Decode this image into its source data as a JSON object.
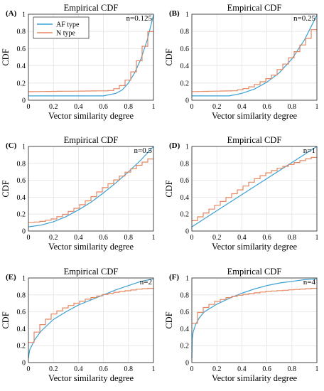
{
  "figure": {
    "panels": [
      {
        "label": "(A)",
        "title": "Empirical CDF",
        "annotation": "n=0.125",
        "xlabel": "Vector similarity degree",
        "ylabel": "CDF"
      },
      {
        "label": "(B)",
        "title": "Empirical CDF",
        "annotation": "n=0.25",
        "xlabel": "Vector similarity degree",
        "ylabel": "CDF"
      },
      {
        "label": "(C)",
        "title": "Empirical CDF",
        "annotation": "n=0.5",
        "xlabel": "Vector similarity degree",
        "ylabel": "CDF"
      },
      {
        "label": "(D)",
        "title": "Empirical CDF",
        "annotation": "n=1",
        "xlabel": "Vector similarity degree",
        "ylabel": "CDF"
      },
      {
        "label": "(E)",
        "title": "Empirical CDF",
        "annotation": "n=2",
        "xlabel": "Vector similarity degree",
        "ylabel": "CDF"
      },
      {
        "label": "(F)",
        "title": "Empirical CDF",
        "annotation": "n=4",
        "xlabel": "Vector similarity degree",
        "ylabel": "CDF"
      }
    ],
    "legend": {
      "placement": "top-left of panel (A)",
      "items": [
        "AF type",
        "N type"
      ]
    },
    "colors": {
      "af": "#3aa0d3",
      "n": "#e58760"
    }
  },
  "chart_data": [
    {
      "type": "line",
      "panel": "(A)",
      "title": "Empirical CDF",
      "annotation": "n=0.125",
      "xlabel": "Vector similarity degree",
      "ylabel": "CDF",
      "xlim": [
        0,
        1
      ],
      "ylim": [
        0,
        1
      ],
      "xticks": [
        "0",
        "0.2",
        "0.4",
        "0.6",
        "0.8",
        "1"
      ],
      "yticks": [
        "0",
        "0.2",
        "0.4",
        "0.6",
        "0.8",
        "1"
      ],
      "grid": true,
      "legend": "top-left",
      "series": [
        {
          "name": "AF type",
          "color": "#3aa0d3",
          "x": [
            0,
            0.6,
            0.7,
            0.75,
            0.8,
            0.85,
            0.9,
            0.95,
            1.0
          ],
          "y": [
            0.05,
            0.05,
            0.08,
            0.12,
            0.2,
            0.32,
            0.48,
            0.7,
            0.99
          ]
        },
        {
          "name": "N type",
          "color": "#e58760",
          "x": [
            0,
            0.65,
            0.7,
            0.75,
            0.8,
            0.85,
            0.9,
            0.95,
            1.0
          ],
          "y": [
            0.1,
            0.11,
            0.13,
            0.17,
            0.24,
            0.35,
            0.5,
            0.7,
            0.88
          ]
        }
      ]
    },
    {
      "type": "line",
      "panel": "(B)",
      "title": "Empirical CDF",
      "annotation": "n=0.25",
      "xlabel": "Vector similarity degree",
      "ylabel": "CDF",
      "xlim": [
        0,
        1
      ],
      "ylim": [
        0,
        1
      ],
      "xticks": [
        "0",
        "0.2",
        "0.4",
        "0.6",
        "0.8",
        "1"
      ],
      "yticks": [
        "0",
        "0.2",
        "0.4",
        "0.6",
        "0.8",
        "1"
      ],
      "grid": true,
      "series": [
        {
          "name": "AF type",
          "color": "#3aa0d3",
          "x": [
            0,
            0.3,
            0.4,
            0.5,
            0.6,
            0.7,
            0.8,
            0.9,
            1.0
          ],
          "y": [
            0.05,
            0.05,
            0.08,
            0.13,
            0.21,
            0.32,
            0.48,
            0.7,
            0.99
          ]
        },
        {
          "name": "N type",
          "color": "#e58760",
          "x": [
            0,
            0.35,
            0.45,
            0.55,
            0.65,
            0.75,
            0.85,
            0.95,
            1.0
          ],
          "y": [
            0.1,
            0.11,
            0.14,
            0.2,
            0.28,
            0.42,
            0.58,
            0.75,
            0.88
          ]
        }
      ]
    },
    {
      "type": "line",
      "panel": "(C)",
      "title": "Empirical CDF",
      "annotation": "n=0.5",
      "xlabel": "Vector similarity degree",
      "ylabel": "CDF",
      "xlim": [
        0,
        1
      ],
      "ylim": [
        0,
        1
      ],
      "xticks": [
        "0",
        "0.2",
        "0.4",
        "0.6",
        "0.8",
        "1"
      ],
      "yticks": [
        "0",
        "0.2",
        "0.4",
        "0.6",
        "0.8",
        "1"
      ],
      "grid": true,
      "series": [
        {
          "name": "AF type",
          "color": "#3aa0d3",
          "x": [
            0,
            0.1,
            0.2,
            0.3,
            0.4,
            0.5,
            0.6,
            0.7,
            0.8,
            0.9,
            1.0
          ],
          "y": [
            0.05,
            0.07,
            0.11,
            0.17,
            0.25,
            0.34,
            0.45,
            0.57,
            0.7,
            0.84,
            1.0
          ]
        },
        {
          "name": "N type",
          "color": "#e58760",
          "x": [
            0,
            0.1,
            0.2,
            0.3,
            0.4,
            0.5,
            0.6,
            0.7,
            0.8,
            0.9,
            1.0
          ],
          "y": [
            0.1,
            0.11,
            0.14,
            0.2,
            0.28,
            0.38,
            0.5,
            0.6,
            0.7,
            0.79,
            0.87
          ]
        }
      ]
    },
    {
      "type": "line",
      "panel": "(D)",
      "title": "Empirical CDF",
      "annotation": "n=1",
      "xlabel": "Vector similarity degree",
      "ylabel": "CDF",
      "xlim": [
        0,
        1
      ],
      "ylim": [
        0,
        1
      ],
      "xticks": [
        "0",
        "0.2",
        "0.4",
        "0.6",
        "0.8",
        "1"
      ],
      "yticks": [
        "0",
        "0.2",
        "0.4",
        "0.6",
        "0.8",
        "1"
      ],
      "grid": true,
      "series": [
        {
          "name": "AF type",
          "color": "#3aa0d3",
          "x": [
            0,
            0.2,
            0.4,
            0.6,
            0.8,
            1.0
          ],
          "y": [
            0.05,
            0.24,
            0.43,
            0.62,
            0.81,
            1.0
          ]
        },
        {
          "name": "N type",
          "color": "#e58760",
          "x": [
            0,
            0.1,
            0.2,
            0.3,
            0.4,
            0.5,
            0.6,
            0.7,
            0.8,
            0.9,
            1.0
          ],
          "y": [
            0.1,
            0.2,
            0.3,
            0.4,
            0.5,
            0.6,
            0.68,
            0.74,
            0.79,
            0.84,
            0.88
          ]
        }
      ]
    },
    {
      "type": "line",
      "panel": "(E)",
      "title": "Empirical CDF",
      "annotation": "n=2",
      "xlabel": "Vector similarity degree",
      "ylabel": "CDF",
      "xlim": [
        0,
        1
      ],
      "ylim": [
        0,
        1
      ],
      "xticks": [
        "0",
        "0.2",
        "0.4",
        "0.6",
        "0.8",
        "1"
      ],
      "yticks": [
        "0",
        "0.2",
        "0.4",
        "0.6",
        "0.8",
        "1"
      ],
      "grid": true,
      "series": [
        {
          "name": "AF type",
          "color": "#3aa0d3",
          "x": [
            0,
            0.01,
            0.05,
            0.1,
            0.2,
            0.3,
            0.4,
            0.5,
            0.6,
            0.7,
            0.8,
            0.9,
            1.0
          ],
          "y": [
            0.05,
            0.15,
            0.27,
            0.37,
            0.51,
            0.6,
            0.68,
            0.74,
            0.8,
            0.86,
            0.91,
            0.96,
            0.99
          ]
        },
        {
          "name": "N type",
          "color": "#e58760",
          "x": [
            0,
            0.01,
            0.05,
            0.1,
            0.2,
            0.3,
            0.4,
            0.5,
            0.6,
            0.7,
            0.8,
            0.9,
            1.0
          ],
          "y": [
            0.1,
            0.2,
            0.32,
            0.43,
            0.57,
            0.65,
            0.71,
            0.76,
            0.8,
            0.83,
            0.85,
            0.87,
            0.88
          ]
        }
      ]
    },
    {
      "type": "line",
      "panel": "(F)",
      "title": "Empirical CDF",
      "annotation": "n=4",
      "xlabel": "Vector similarity degree",
      "ylabel": "CDF",
      "xlim": [
        0,
        1
      ],
      "ylim": [
        0,
        1
      ],
      "xticks": [
        "0",
        "0.2",
        "0.4",
        "0.6",
        "0.8",
        "1"
      ],
      "yticks": [
        "0",
        "0.2",
        "0.4",
        "0.6",
        "0.8",
        "1"
      ],
      "grid": true,
      "series": [
        {
          "name": "AF type",
          "color": "#3aa0d3",
          "x": [
            0,
            0.003,
            0.01,
            0.03,
            0.06,
            0.1,
            0.2,
            0.3,
            0.4,
            0.5,
            0.6,
            0.7,
            0.8,
            0.9,
            1.0
          ],
          "y": [
            0.05,
            0.28,
            0.36,
            0.45,
            0.53,
            0.6,
            0.69,
            0.76,
            0.82,
            0.87,
            0.91,
            0.94,
            0.96,
            0.98,
            0.99
          ]
        },
        {
          "name": "N type",
          "color": "#e58760",
          "x": [
            0,
            0.003,
            0.01,
            0.03,
            0.06,
            0.1,
            0.2,
            0.3,
            0.4,
            0.5,
            0.6,
            0.7,
            0.8,
            0.9,
            1.0
          ],
          "y": [
            0.1,
            0.3,
            0.4,
            0.5,
            0.58,
            0.64,
            0.72,
            0.77,
            0.8,
            0.82,
            0.84,
            0.85,
            0.86,
            0.87,
            0.88
          ]
        }
      ]
    }
  ]
}
